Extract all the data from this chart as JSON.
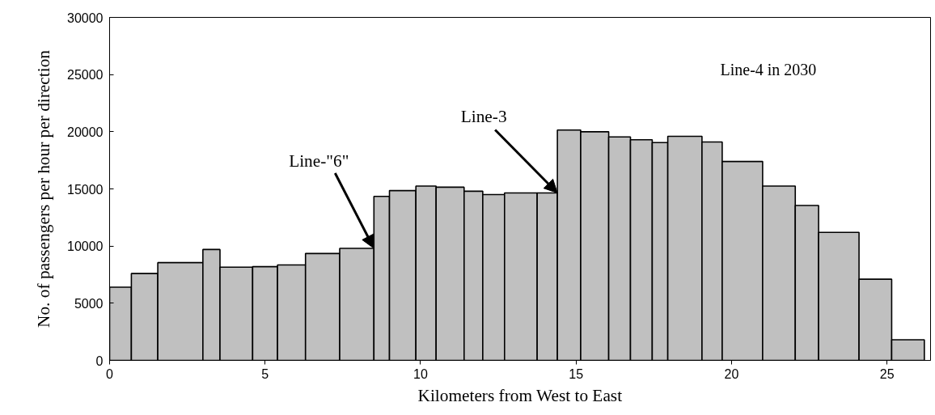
{
  "chart_data": {
    "type": "histogram",
    "xlabel": "Kilometers from West to East",
    "ylabel": "No. of passengers per hour per direction",
    "bins": [
      0,
      0.7,
      1.55,
      3.0,
      3.55,
      4.6,
      5.4,
      6.3,
      7.4,
      8.5,
      9.0,
      9.85,
      10.5,
      11.4,
      12.0,
      12.7,
      13.75,
      14.4,
      15.15,
      16.05,
      16.75,
      17.45,
      17.95,
      19.05,
      19.7,
      21.0,
      22.05,
      22.8,
      24.1,
      25.15,
      26.2
    ],
    "values": [
      6400,
      7600,
      8550,
      9700,
      8150,
      8200,
      8350,
      9350,
      9800,
      14350,
      14850,
      15250,
      15150,
      14800,
      14500,
      14650,
      14650,
      20150,
      20000,
      19550,
      19300,
      19050,
      19600,
      19100,
      17400,
      15250,
      13550,
      11200,
      7100,
      1800
    ],
    "color": "#c0c0c0",
    "xlim": [
      0,
      26.4
    ],
    "ylim": [
      0,
      30000
    ],
    "xticks": [
      0,
      5,
      10,
      15,
      20,
      25
    ],
    "yticks": [
      0,
      5000,
      10000,
      15000,
      20000,
      25000,
      30000
    ],
    "grid": false,
    "annotations": [
      "Line-4 in 2030",
      {
        "text": "Line-\"6\"",
        "x": 8.5,
        "y": 9800
      },
      {
        "text": "Line-3",
        "x": 14.4,
        "y": 14650
      }
    ]
  }
}
